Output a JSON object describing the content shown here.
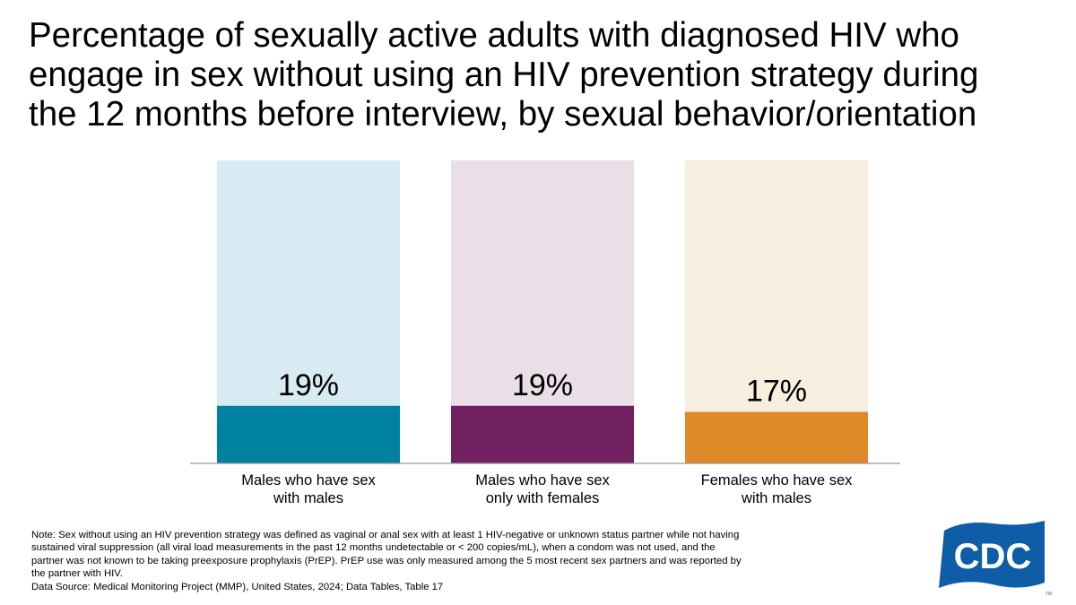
{
  "title": "Percentage of sexually active adults with diagnosed HIV who engage in sex without using an HIV prevention strategy during the 12 months before interview, by sexual behavior/orientation",
  "title_lines": [
    "Percentage of sexually active adults with diagnosed HIV who",
    "engage in sex without using an HIV prevention strategy during",
    "the 12 months before interview, by sexual behavior/orientation"
  ],
  "chart_data": {
    "type": "bar",
    "categories": [
      "Males who have sex with males",
      "Males who have sex only with females",
      "Females who have sex with males"
    ],
    "category_lines": [
      [
        "Males who have sex",
        "with males"
      ],
      [
        "Males who have sex",
        "only with females"
      ],
      [
        "Females who have sex",
        "with males"
      ]
    ],
    "values": [
      19,
      19,
      17
    ],
    "value_labels": [
      "19%",
      "19%",
      "17%"
    ],
    "ylim": [
      0,
      100
    ],
    "unit": "%",
    "grid": false,
    "legend": "none",
    "bar_colors": [
      "#00819F",
      "#722160",
      "#DE8A28"
    ],
    "background_colors": [
      "#D9EBF2",
      "#EADFE7",
      "#F8EEDF"
    ]
  },
  "note": "Note: Sex without using an HIV prevention strategy was defined as vaginal or anal sex with at least 1 HIV-negative or unknown status partner while not having sustained viral suppression (all viral load measurements in the past 12 months undetectable or < 200 copies/mL), when a condom was not used, and the partner was not known to be taking preexposure prophylaxis (PrEP). PrEP use was only measured among the 5 most recent sex partners and was reported by the partner with HIV.",
  "source": "Data Source: Medical Monitoring Project (MMP), United States, 2024; Data Tables, Table 17",
  "logo": {
    "text": "CDC",
    "color": "#0E5DA6",
    "icon": "cdc-logo"
  }
}
